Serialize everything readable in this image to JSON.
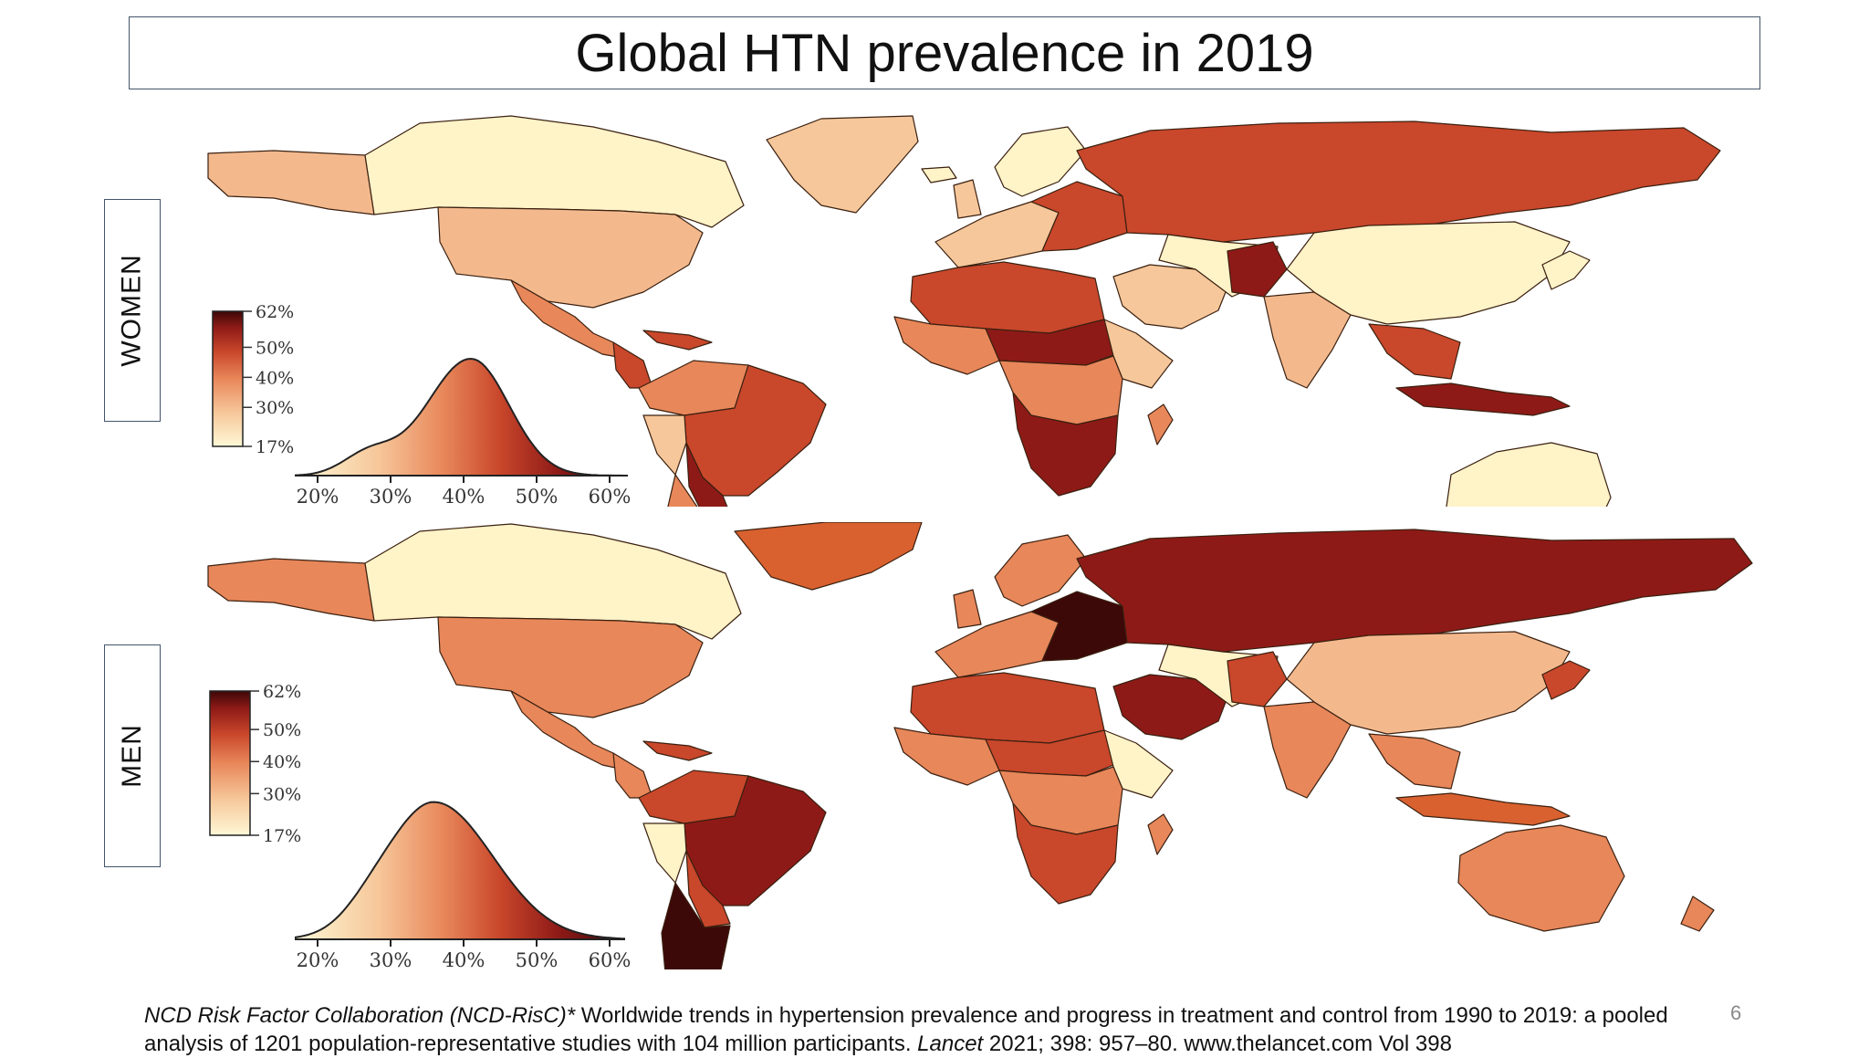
{
  "title": "Global HTN prevalence in 2019",
  "panels": [
    {
      "id": "women",
      "label": "WOMEN",
      "legend_ticks": [
        "62%",
        "50%",
        "40%",
        "30%",
        "17%"
      ],
      "legend_tick_values": [
        62,
        50,
        40,
        30,
        17
      ],
      "density_axis_ticks": [
        "20%",
        "30%",
        "40%",
        "50%",
        "60%"
      ],
      "density_axis_values": [
        20,
        30,
        40,
        50,
        60
      ],
      "density_peak_percent": 41
    },
    {
      "id": "men",
      "label": "MEN",
      "legend_ticks": [
        "62%",
        "50%",
        "40%",
        "30%",
        "17%"
      ],
      "legend_tick_values": [
        62,
        50,
        40,
        30,
        17
      ],
      "density_axis_ticks": [
        "20%",
        "30%",
        "40%",
        "50%",
        "60%"
      ],
      "density_axis_values": [
        20,
        30,
        40,
        50,
        60
      ],
      "density_peak_percent": 36
    }
  ],
  "color_scale": [
    "#fff8d6",
    "#f6c79a",
    "#e8875a",
    "#c9472b",
    "#8e1a17",
    "#3d0808"
  ],
  "citation": {
    "authors": "NCD Risk Factor Collaboration (NCD-RisC)*",
    "body": " Worldwide trends in hypertension prevalence and progress in treatment and control from 1990 to 2019: a pooled analysis of 1201 population-representative studies with 104 million participants. ",
    "journal": "Lancet",
    "rest": " 2021; 398: 957–80. www.thelancet.com Vol 398"
  },
  "page_number": "6"
}
